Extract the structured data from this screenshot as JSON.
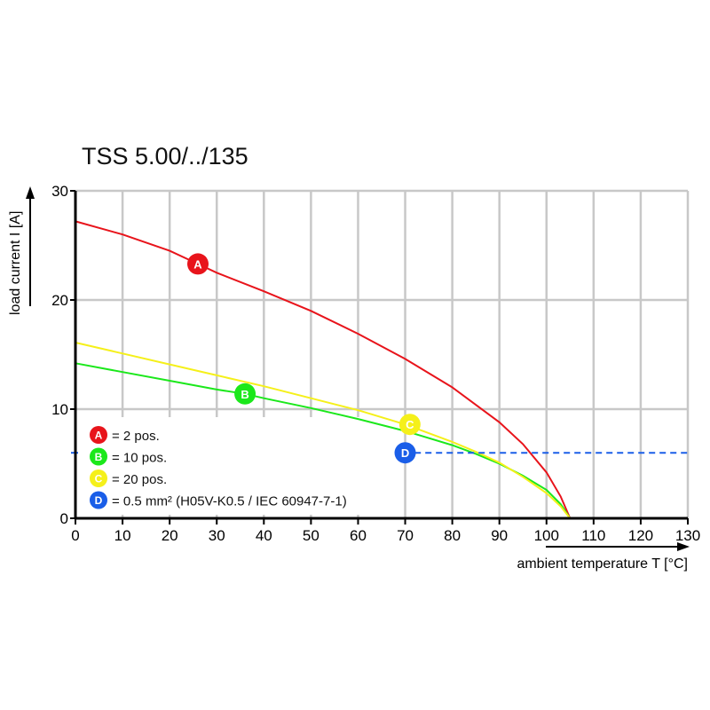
{
  "chart_data": {
    "type": "line",
    "title": "TSS 5.00/../135",
    "xlabel": "ambient temperature T [°C]",
    "ylabel": "load current I [A]",
    "xlim": [
      0,
      130
    ],
    "ylim": [
      0,
      30
    ],
    "xticks": [
      "0",
      "10",
      "20",
      "30",
      "40",
      "50",
      "60",
      "70",
      "80",
      "90",
      "100",
      "110",
      "120",
      "130"
    ],
    "yticks": [
      "0",
      "10",
      "20",
      "30"
    ],
    "grid": true,
    "series": [
      {
        "name": "A",
        "label": "= 2 pos.",
        "color": "#e8141b",
        "marker": [
          26,
          23.3
        ],
        "points": [
          [
            0,
            27.2
          ],
          [
            10,
            26.0
          ],
          [
            20,
            24.5
          ],
          [
            26,
            23.3
          ],
          [
            30,
            22.5
          ],
          [
            40,
            20.8
          ],
          [
            50,
            19.0
          ],
          [
            60,
            16.9
          ],
          [
            70,
            14.6
          ],
          [
            80,
            12.0
          ],
          [
            90,
            8.8
          ],
          [
            95,
            6.8
          ],
          [
            100,
            4.2
          ],
          [
            103,
            2.0
          ],
          [
            105,
            0
          ]
        ]
      },
      {
        "name": "B",
        "label": "= 10 pos.",
        "color": "#1be81b",
        "marker": [
          36,
          11.4
        ],
        "points": [
          [
            0,
            14.2
          ],
          [
            10,
            13.4
          ],
          [
            20,
            12.6
          ],
          [
            30,
            11.8
          ],
          [
            36,
            11.4
          ],
          [
            40,
            11.0
          ],
          [
            50,
            10.1
          ],
          [
            60,
            9.1
          ],
          [
            70,
            8.0
          ],
          [
            80,
            6.7
          ],
          [
            85,
            5.9
          ],
          [
            90,
            5.0
          ],
          [
            95,
            3.9
          ],
          [
            100,
            2.6
          ],
          [
            103,
            1.3
          ],
          [
            105,
            0
          ]
        ]
      },
      {
        "name": "C",
        "label": "= 20 pos.",
        "color": "#f5f01a",
        "marker": [
          71,
          8.6
        ],
        "points": [
          [
            0,
            16.1
          ],
          [
            10,
            15.1
          ],
          [
            20,
            14.1
          ],
          [
            30,
            13.1
          ],
          [
            40,
            12.1
          ],
          [
            50,
            11.0
          ],
          [
            60,
            9.9
          ],
          [
            70,
            8.6
          ],
          [
            80,
            7.0
          ],
          [
            85,
            6.1
          ],
          [
            90,
            5.1
          ],
          [
            95,
            3.8
          ],
          [
            100,
            2.3
          ],
          [
            103,
            1.1
          ],
          [
            105,
            0
          ]
        ]
      },
      {
        "name": "D",
        "label": "= 0.5 mm² (H05V-K0.5 / IEC 60947-7-1)",
        "color": "#1a5ee8",
        "marker": [
          70,
          6
        ],
        "dashed": true,
        "points": [
          [
            72,
            6
          ],
          [
            130,
            6
          ]
        ]
      }
    ],
    "legend_placement": "bottom-left"
  }
}
